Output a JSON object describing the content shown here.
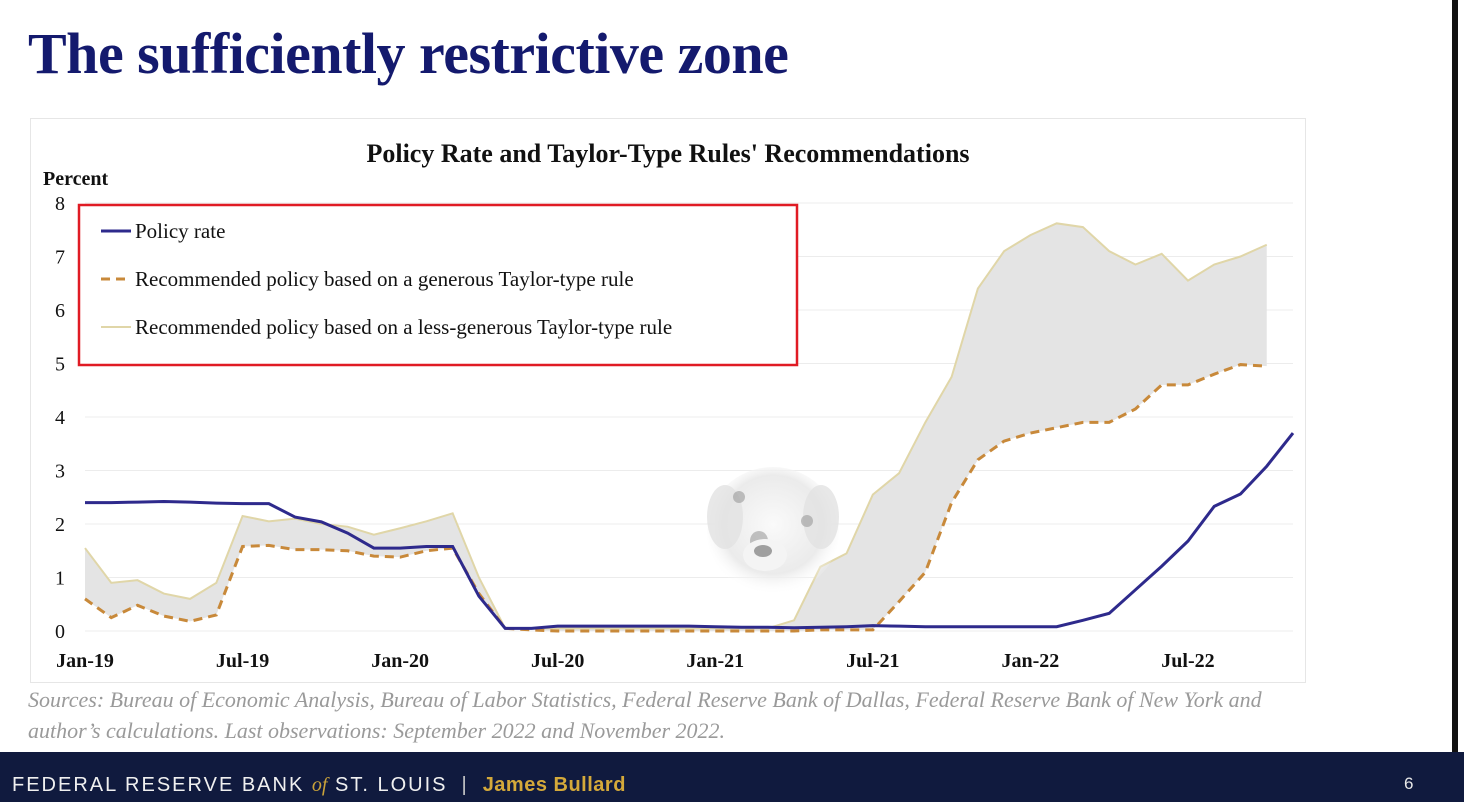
{
  "slide": {
    "title": "The sufficiently restrictive zone",
    "sources": "Sources: Bureau of Economic Analysis, Bureau of Labor Statistics, Federal Reserve Bank of Dallas, Federal Reserve Bank of New York and author’s calculations. Last observations: September 2022 and November 2022.",
    "page_number": "6"
  },
  "footer": {
    "bank_part1": "FEDERAL RESERVE BANK",
    "bank_of": "of",
    "bank_part2": "ST. LOUIS",
    "separator": "|",
    "author": "James Bullard"
  },
  "colors": {
    "title": "#141a6e",
    "policy_rate": "#2e2a8c",
    "generous": "#c8893a",
    "less_generous": "#e0d6a8",
    "band_fill": "#e4e4e4",
    "legend_border": "#e01b24"
  },
  "chart_data": {
    "type": "line",
    "title": "Policy Rate and Taylor-Type Rules' Recommendations",
    "ylabel": "Percent",
    "xlabel": "",
    "ylim": [
      0,
      8
    ],
    "yticks": [
      0,
      1,
      2,
      3,
      4,
      5,
      6,
      7,
      8
    ],
    "x_start": "Jan-19",
    "x_end": "Oct-22",
    "xtick_labels": [
      "Jan-19",
      "Jul-19",
      "Jan-20",
      "Jul-20",
      "Jan-21",
      "Jul-21",
      "Jan-22",
      "Jul-22"
    ],
    "xtick_index": [
      0,
      6,
      12,
      18,
      24,
      30,
      36,
      42
    ],
    "grid": "horizontal",
    "legend_position": "top-left",
    "shaded_between": [
      "Recommended policy based on a generous Taylor-type rule",
      "Recommended policy based on a less-generous Taylor-type rule"
    ],
    "series": [
      {
        "name": "Policy rate",
        "style": "solid",
        "x": [
          0,
          1,
          2,
          3,
          4,
          5,
          6,
          7,
          8,
          9,
          10,
          11,
          12,
          13,
          14,
          15,
          16,
          17,
          18,
          19,
          20,
          21,
          22,
          23,
          24,
          25,
          26,
          27,
          28,
          29,
          30,
          31,
          32,
          33,
          34,
          35,
          36,
          37,
          38,
          39,
          40,
          41,
          42,
          43,
          44,
          45,
          46
        ],
        "values": [
          2.4,
          2.4,
          2.41,
          2.42,
          2.41,
          2.39,
          2.38,
          2.38,
          2.13,
          2.04,
          1.83,
          1.55,
          1.55,
          1.58,
          1.58,
          0.65,
          0.05,
          0.05,
          0.09,
          0.09,
          0.09,
          0.09,
          0.09,
          0.09,
          0.08,
          0.07,
          0.07,
          0.06,
          0.07,
          0.08,
          0.1,
          0.09,
          0.08,
          0.08,
          0.08,
          0.08,
          0.08,
          0.08,
          0.2,
          0.33,
          0.77,
          1.21,
          1.68,
          2.33,
          2.56,
          3.08,
          3.7
        ]
      },
      {
        "name": "Recommended policy based on a generous Taylor-type rule",
        "style": "dashed",
        "x": [
          0,
          1,
          2,
          3,
          4,
          5,
          6,
          7,
          8,
          9,
          10,
          11,
          12,
          13,
          14,
          15,
          16,
          17,
          18,
          19,
          20,
          21,
          22,
          23,
          24,
          25,
          26,
          27,
          28,
          29,
          30,
          31,
          32,
          33,
          34,
          35,
          36,
          37,
          38,
          39,
          40,
          41,
          42,
          43,
          44,
          45,
          46
        ],
        "values": [
          0.6,
          0.25,
          0.48,
          0.28,
          0.18,
          0.3,
          1.58,
          1.6,
          1.52,
          1.52,
          1.5,
          1.4,
          1.38,
          1.5,
          1.55,
          0.7,
          0.05,
          0.02,
          0.0,
          0.0,
          0.0,
          0.0,
          0.0,
          0.0,
          0.0,
          0.0,
          0.0,
          0.0,
          0.02,
          0.02,
          0.02,
          0.55,
          1.1,
          2.4,
          3.2,
          3.55,
          3.7,
          3.8,
          3.9,
          3.9,
          4.15,
          4.6,
          4.6,
          4.8,
          4.98,
          4.95,
          null
        ]
      },
      {
        "name": "Recommended policy based on a less-generous Taylor-type rule",
        "style": "solid-light",
        "x": [
          0,
          1,
          2,
          3,
          4,
          5,
          6,
          7,
          8,
          9,
          10,
          11,
          12,
          13,
          14,
          15,
          16,
          17,
          18,
          19,
          20,
          21,
          22,
          23,
          24,
          25,
          26,
          27,
          28,
          29,
          30,
          31,
          32,
          33,
          34,
          35,
          36,
          37,
          38,
          39,
          40,
          41,
          42,
          43,
          44,
          45,
          46
        ],
        "values": [
          1.55,
          0.9,
          0.95,
          0.7,
          0.6,
          0.9,
          2.15,
          2.05,
          2.1,
          2.0,
          1.95,
          1.8,
          1.92,
          2.05,
          2.2,
          1.0,
          0.05,
          0.05,
          0.05,
          0.05,
          0.05,
          0.05,
          0.05,
          0.05,
          0.05,
          0.05,
          0.05,
          0.2,
          1.2,
          1.45,
          2.55,
          2.95,
          3.9,
          4.75,
          6.4,
          7.1,
          7.4,
          7.62,
          7.55,
          7.1,
          6.85,
          7.05,
          6.55,
          6.85,
          7.0,
          7.22,
          null
        ]
      }
    ]
  }
}
